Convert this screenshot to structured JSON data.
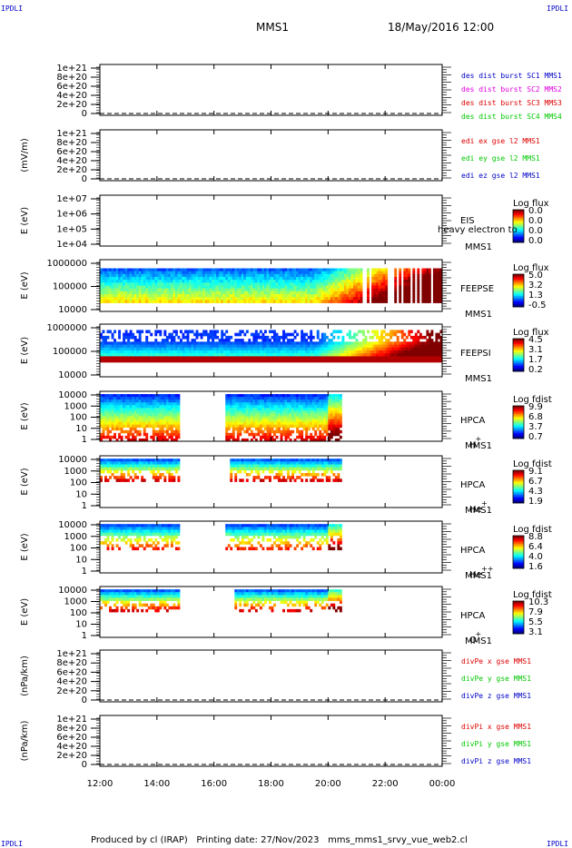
{
  "header": {
    "mission": "MMS1",
    "date": "18/May/2016 12:00",
    "corner_left_top": "IPDLI",
    "corner_right_top": "IPDLI",
    "corner_left_bottom": "IPDLI",
    "corner_right_bottom": "IPDLI"
  },
  "footer": {
    "produced": "Produced by cl (IRAP)",
    "printing": "Printing date: 27/Nov/2023",
    "script": "mms_mms1_srvy_vue_web2.cl"
  },
  "time_axis": {
    "ticks": [
      "12:00",
      "14:00",
      "16:00",
      "18:00",
      "20:00",
      "22:00",
      "00:00"
    ],
    "start_hour": 12,
    "end_hour": 24
  },
  "colors": {
    "mms1": "#0000c8",
    "mms2": "#e000e0",
    "mms3": "#e00000",
    "mms4": "#00c800",
    "x": "#e00000",
    "y": "#00c800",
    "z": "#0000c8"
  },
  "chart_data": [
    {
      "id": "p1",
      "type": "line",
      "ylabel": "",
      "ylim": [
        0,
        1e+21
      ],
      "yticks": [
        "0",
        "2e+20",
        "4e+20",
        "6e+20",
        "8e+20",
        "1e+21"
      ],
      "legend": [
        {
          "text": "des dist burst SC1 MMS1",
          "color": "#0000c8"
        },
        {
          "text": "des dist burst SC2 MMS2",
          "color": "#e000e0"
        },
        {
          "text": "des dist burst SC3 MMS3",
          "color": "#e00000"
        },
        {
          "text": "des dist burst SC4 MMS4",
          "color": "#00c800"
        }
      ]
    },
    {
      "id": "p2",
      "type": "line",
      "ylabel": "(mV/m)",
      "ylim": [
        0,
        1e+21
      ],
      "yticks": [
        "0",
        "2e+20",
        "4e+20",
        "6e+20",
        "8e+20",
        "1e+21"
      ],
      "legend": [
        {
          "text": "edi ex gse l2 MMS1",
          "color": "#e00000"
        },
        {
          "text": "edi ey gse l2 MMS1",
          "color": "#00c800"
        },
        {
          "text": "edi ez gse l2 MMS1",
          "color": "#0000c8"
        }
      ]
    },
    {
      "id": "p3",
      "type": "heatmap",
      "ylabel": "E (eV)",
      "ylim": [
        10000.0,
        10000000.0
      ],
      "ylog": true,
      "yticks": [
        "1e+04",
        "1e+05",
        "1e+06",
        "1e+07"
      ],
      "instrument": "EIS",
      "instrument2": "MMS1",
      "extra_label": "heavy electron to",
      "cb_title": "Log flux",
      "cb_ticks": [
        "0.0",
        "0.0",
        "0.0",
        "0.0"
      ],
      "coverage": []
    },
    {
      "id": "p4",
      "type": "heatmap",
      "ylabel": "E (eV)",
      "ylim": [
        10000.0,
        1000000.0
      ],
      "ylog": true,
      "yticks": [
        "10000",
        "100000",
        "1000000"
      ],
      "instrument": "FEEPSE",
      "instrument2": "MMS1",
      "cb_title": "Log flux",
      "cb_ticks": [
        "5.0",
        "3.2",
        "1.3",
        "-0.5"
      ],
      "coverage": [
        [
          12.0,
          24.0
        ]
      ]
    },
    {
      "id": "p5",
      "type": "heatmap",
      "ylabel": "E (eV)",
      "ylim": [
        10000.0,
        1000000.0
      ],
      "ylog": true,
      "yticks": [
        "10000",
        "100000",
        "1000000"
      ],
      "instrument": "FEEPSI",
      "instrument2": "MMS1",
      "cb_title": "Log flux",
      "cb_ticks": [
        "4.5",
        "3.1",
        "1.7",
        "0.2"
      ],
      "coverage": [
        [
          12.0,
          24.0
        ]
      ]
    },
    {
      "id": "p6",
      "type": "heatmap",
      "ylabel": "E (eV)",
      "ylim": [
        1,
        10000.0
      ],
      "ylog": true,
      "yticks": [
        "1",
        "10",
        "100",
        "1000",
        "10000"
      ],
      "instrument": "HPCA",
      "instrument2": "MMS1",
      "species": "H",
      "species_sup": "+",
      "cb_title": "Log fdist",
      "cb_ticks": [
        "9.9",
        "6.8",
        "3.7",
        "0.7"
      ],
      "coverage": [
        [
          12.0,
          14.8
        ],
        [
          16.4,
          20.5
        ]
      ]
    },
    {
      "id": "p7",
      "type": "heatmap",
      "ylabel": "E (eV)",
      "ylim": [
        1,
        10000.0
      ],
      "ylog": true,
      "yticks": [
        "1",
        "10",
        "100",
        "1000",
        "10000"
      ],
      "instrument": "HPCA",
      "instrument2": "MMS1",
      "species": "He",
      "species_sup": "+",
      "cb_title": "Log fdist",
      "cb_ticks": [
        "9.1",
        "6.7",
        "4.3",
        "1.9"
      ],
      "coverage": [
        [
          12.0,
          14.8
        ],
        [
          16.6,
          20.5
        ]
      ]
    },
    {
      "id": "p8",
      "type": "heatmap",
      "ylabel": "E (eV)",
      "ylim": [
        1,
        10000.0
      ],
      "ylog": true,
      "yticks": [
        "1",
        "10",
        "100",
        "1000",
        "10000"
      ],
      "instrument": "HPCA",
      "instrument2": "MMS1",
      "species": "He",
      "species_sup": "++",
      "cb_title": "Log fdist",
      "cb_ticks": [
        "8.8",
        "6.4",
        "4.0",
        "1.6"
      ],
      "coverage": [
        [
          12.0,
          14.8
        ],
        [
          16.4,
          20.5
        ]
      ]
    },
    {
      "id": "p9",
      "type": "heatmap",
      "ylabel": "E (eV)",
      "ylim": [
        1,
        10000.0
      ],
      "ylog": true,
      "yticks": [
        "1",
        "10",
        "100",
        "1000",
        "10000"
      ],
      "instrument": "HPCA",
      "instrument2": "MMS1",
      "species": "O",
      "species_sup": "+",
      "cb_title": "Log fdist",
      "cb_ticks": [
        "10.3",
        "7.9",
        "5.5",
        "3.1"
      ],
      "coverage": [
        [
          12.0,
          14.8
        ],
        [
          16.7,
          20.5
        ]
      ]
    },
    {
      "id": "p10",
      "type": "line",
      "ylabel": "(nPa/km)",
      "ylim": [
        0,
        1e+21
      ],
      "yticks": [
        "0",
        "2e+20",
        "4e+20",
        "6e+20",
        "8e+20",
        "1e+21"
      ],
      "legend": [
        {
          "text": "divPe x gse MMS1",
          "color": "#e00000"
        },
        {
          "text": "divPe y gse MMS1",
          "color": "#00c800"
        },
        {
          "text": "divPe z gse MMS1",
          "color": "#0000c8"
        }
      ]
    },
    {
      "id": "p11",
      "type": "line",
      "ylabel": "(nPa/km)",
      "ylim": [
        0,
        1e+21
      ],
      "yticks": [
        "0",
        "2e+20",
        "4e+20",
        "6e+20",
        "8e+20",
        "1e+21"
      ],
      "legend": [
        {
          "text": "divPi x gse MMS1",
          "color": "#e00000"
        },
        {
          "text": "divPi y gse MMS1",
          "color": "#00c800"
        },
        {
          "text": "divPi z gse MMS1",
          "color": "#0000c8"
        }
      ]
    }
  ]
}
